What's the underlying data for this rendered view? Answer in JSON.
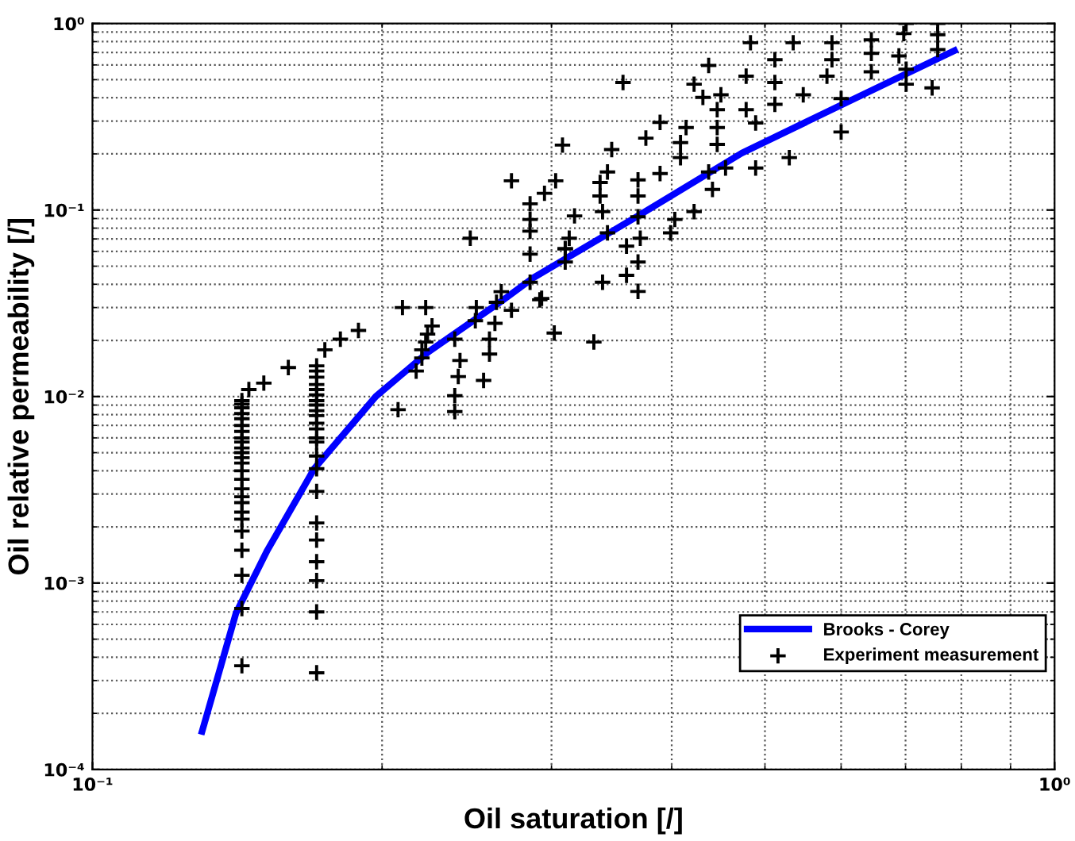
{
  "chart_data": {
    "type": "scatter",
    "xlabel": "Oil saturation [/]",
    "ylabel": "Oil relative permeability [/]",
    "log": "xy",
    "grid": true,
    "legend": "bottom right",
    "xlim": [
      0.1,
      1
    ],
    "ylim": [
      0.0001,
      1
    ],
    "xticks": [
      {
        "value": 0.1,
        "label": "10⁻¹"
      },
      {
        "value": 1,
        "label": "10⁰"
      }
    ],
    "yticks": [
      {
        "value": 0.0001,
        "label": "10⁻⁴"
      },
      {
        "value": 0.001,
        "label": "10⁻³"
      },
      {
        "value": 0.01,
        "label": "10⁻²"
      },
      {
        "value": 0.1,
        "label": "10⁻¹"
      },
      {
        "value": 1,
        "label": "10⁰"
      }
    ],
    "series": [
      {
        "name": "Brooks - Corey",
        "type": "line",
        "color": "#0000ff",
        "marker": "none",
        "line_style": "solid",
        "x": [
          0.13,
          0.136,
          0.141,
          0.152,
          0.17,
          0.197,
          0.2236,
          0.266,
          0.287,
          0.369,
          0.473,
          0.607,
          0.787
        ],
        "values": [
          0.00016,
          0.00036,
          0.00069,
          0.0015,
          0.0041,
          0.01,
          0.0174,
          0.0324,
          0.0432,
          0.093,
          0.202,
          0.376,
          0.716
        ]
      },
      {
        "name": "Experiment measurement",
        "color": "#000000",
        "marker": "cross",
        "x": [
          0.143,
          0.143,
          0.143,
          0.143,
          0.143,
          0.143,
          0.143,
          0.143,
          0.143,
          0.143,
          0.143,
          0.143,
          0.143,
          0.143,
          0.143,
          0.143,
          0.143,
          0.143,
          0.143,
          0.143,
          0.143,
          0.143,
          0.143,
          0.143,
          0.143,
          0.1454,
          0.1507,
          0.1598,
          0.1744,
          0.181,
          0.189,
          0.171,
          0.171,
          0.171,
          0.171,
          0.171,
          0.171,
          0.171,
          0.171,
          0.171,
          0.171,
          0.171,
          0.171,
          0.171,
          0.171,
          0.171,
          0.171,
          0.171,
          0.171,
          0.171,
          0.171,
          0.171,
          0.171,
          0.171,
          0.2078,
          0.21,
          0.222,
          0.2254,
          0.223,
          0.222,
          0.22,
          0.22,
          0.217,
          0.238,
          0.241,
          0.24,
          0.238,
          0.238,
          0.2506,
          0.25,
          0.2586,
          0.2586,
          0.262,
          0.255,
          0.263,
          0.266,
          0.2726,
          0.2917,
          0.302,
          0.247,
          0.2726,
          0.285,
          0.285,
          0.285,
          0.285,
          0.285,
          0.295,
          0.303,
          0.293,
          0.308,
          0.31,
          0.317,
          0.313,
          0.31,
          0.31,
          0.332,
          0.3465,
          0.337,
          0.337,
          0.343,
          0.339,
          0.343,
          0.339,
          0.356,
          0.369,
          0.369,
          0.369,
          0.359,
          0.371,
          0.369,
          0.359,
          0.369,
          0.376,
          0.389,
          0.389,
          0.403,
          0.399,
          0.4085,
          0.414,
          0.4085,
          0.422,
          0.422,
          0.437,
          0.431,
          0.437,
          0.441,
          0.446,
          0.446,
          0.446,
          0.45,
          0.455,
          0.478,
          0.478,
          0.483,
          0.489,
          0.489,
          0.512,
          0.512,
          0.512,
          0.53,
          0.535,
          0.548,
          0.587,
          0.587,
          0.58,
          0.6,
          0.6,
          0.645,
          0.645,
          0.645,
          0.689,
          0.697,
          0.701,
          0.701,
          0.701,
          0.756,
          0.756,
          0.756,
          0.746
        ],
        "values": [
          0.0095,
          0.0091,
          0.0087,
          0.0081,
          0.0076,
          0.007,
          0.0065,
          0.006,
          0.0057,
          0.0053,
          0.005,
          0.0047,
          0.0044,
          0.004,
          0.0036,
          0.0032,
          0.0029,
          0.0027,
          0.0024,
          0.0022,
          0.0019,
          0.0015,
          0.0011,
          0.00073,
          0.00036,
          0.0109,
          0.0118,
          0.0143,
          0.0178,
          0.0203,
          0.0226,
          0.0146,
          0.0137,
          0.0127,
          0.0116,
          0.0109,
          0.0102,
          0.0095,
          0.009,
          0.0084,
          0.0079,
          0.0072,
          0.0067,
          0.006,
          0.0057,
          0.0048,
          0.0041,
          0.0031,
          0.0021,
          0.0017,
          0.0013,
          0.00103,
          0.0007,
          0.00033,
          0.0085,
          0.03,
          0.03,
          0.0239,
          0.0216,
          0.0196,
          0.0178,
          0.0161,
          0.0137,
          0.0203,
          0.0156,
          0.0128,
          0.0101,
          0.0083,
          0.03,
          0.0255,
          0.0203,
          0.0169,
          0.0247,
          0.0122,
          0.032,
          0.0365,
          0.029,
          0.033,
          0.0219,
          0.0706,
          0.1435,
          0.108,
          0.089,
          0.077,
          0.058,
          0.041,
          0.123,
          0.1435,
          0.0336,
          0.223,
          0.062,
          0.093,
          0.0706,
          0.0526,
          0.062,
          0.0196,
          0.211,
          0.1406,
          0.119,
          0.16,
          0.098,
          0.0754,
          0.041,
          0.483,
          0.145,
          0.119,
          0.092,
          0.064,
          0.0706,
          0.0526,
          0.0447,
          0.0366,
          0.243,
          0.295,
          0.157,
          0.089,
          0.0754,
          0.23,
          0.277,
          0.191,
          0.098,
          0.473,
          0.596,
          0.402,
          0.16,
          0.129,
          0.345,
          0.277,
          0.225,
          0.415,
          0.168,
          0.522,
          0.345,
          0.789,
          0.293,
          0.168,
          0.64,
          0.483,
          0.369,
          0.191,
          0.789,
          0.415,
          0.789,
          0.64,
          0.522,
          0.396,
          0.262,
          0.817,
          0.692,
          0.551,
          0.67,
          0.883,
          1.0,
          0.569,
          0.473,
          1.0,
          0.871,
          0.725,
          0.452
        ]
      }
    ]
  }
}
